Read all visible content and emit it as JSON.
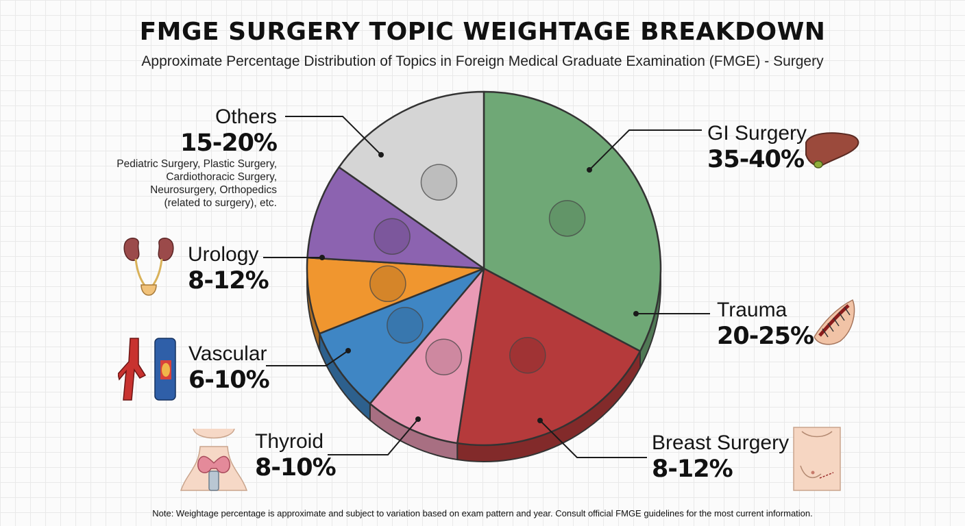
{
  "header": {
    "title": "FMGE SURGERY TOPIC WEIGHTAGE BREAKDOWN",
    "subtitle": "Approximate Percentage Distribution of Topics in Foreign Medical Graduate Examination (FMGE) - Surgery"
  },
  "footer": {
    "note": "Note: Weightage percentage is approximate and subject to variation based on exam pattern and year. Consult official FMGE guidelines for the most current information."
  },
  "chart_data": {
    "type": "pie",
    "title": "FMGE SURGERY TOPIC WEIGHTAGE BREAKDOWN",
    "subtitle": "Approximate Percentage Distribution of Topics in Foreign Medical Graduate Examination (FMGE) - Surgery",
    "slices": [
      {
        "name": "GI Surgery",
        "range": "35-40%",
        "low": 35,
        "high": 40,
        "color": "#6fa876",
        "icon": "digestive-organs-icon"
      },
      {
        "name": "Trauma",
        "range": "20-25%",
        "low": 20,
        "high": 25,
        "color": "#b53a3b",
        "icon": "broken-bone-icon"
      },
      {
        "name": "Breast Surgery",
        "range": "8-12%",
        "low": 8,
        "high": 12,
        "color": "#e99ab5",
        "icon": "breast-icon"
      },
      {
        "name": "Thyroid",
        "range": "8-10%",
        "low": 8,
        "high": 10,
        "color": "#3f86c4",
        "icon": "thyroid-icon"
      },
      {
        "name": "Vascular",
        "range": "6-10%",
        "low": 6,
        "high": 10,
        "color": "#f0962f",
        "icon": "blood-vessel-icon"
      },
      {
        "name": "Urology",
        "range": "8-12%",
        "low": 8,
        "high": 12,
        "color": "#8c63b0",
        "icon": "kidney-icon"
      },
      {
        "name": "Others",
        "range": "15-20%",
        "low": 15,
        "high": 20,
        "color": "#d5d5d5",
        "icon": "surgical-instruments-icon",
        "description": [
          "Pediatric Surgery, Plastic Surgery,",
          "Cardiothoracic Surgery,",
          "Neurosurgery, Orthopedics",
          "(related to surgery), etc."
        ]
      }
    ]
  }
}
